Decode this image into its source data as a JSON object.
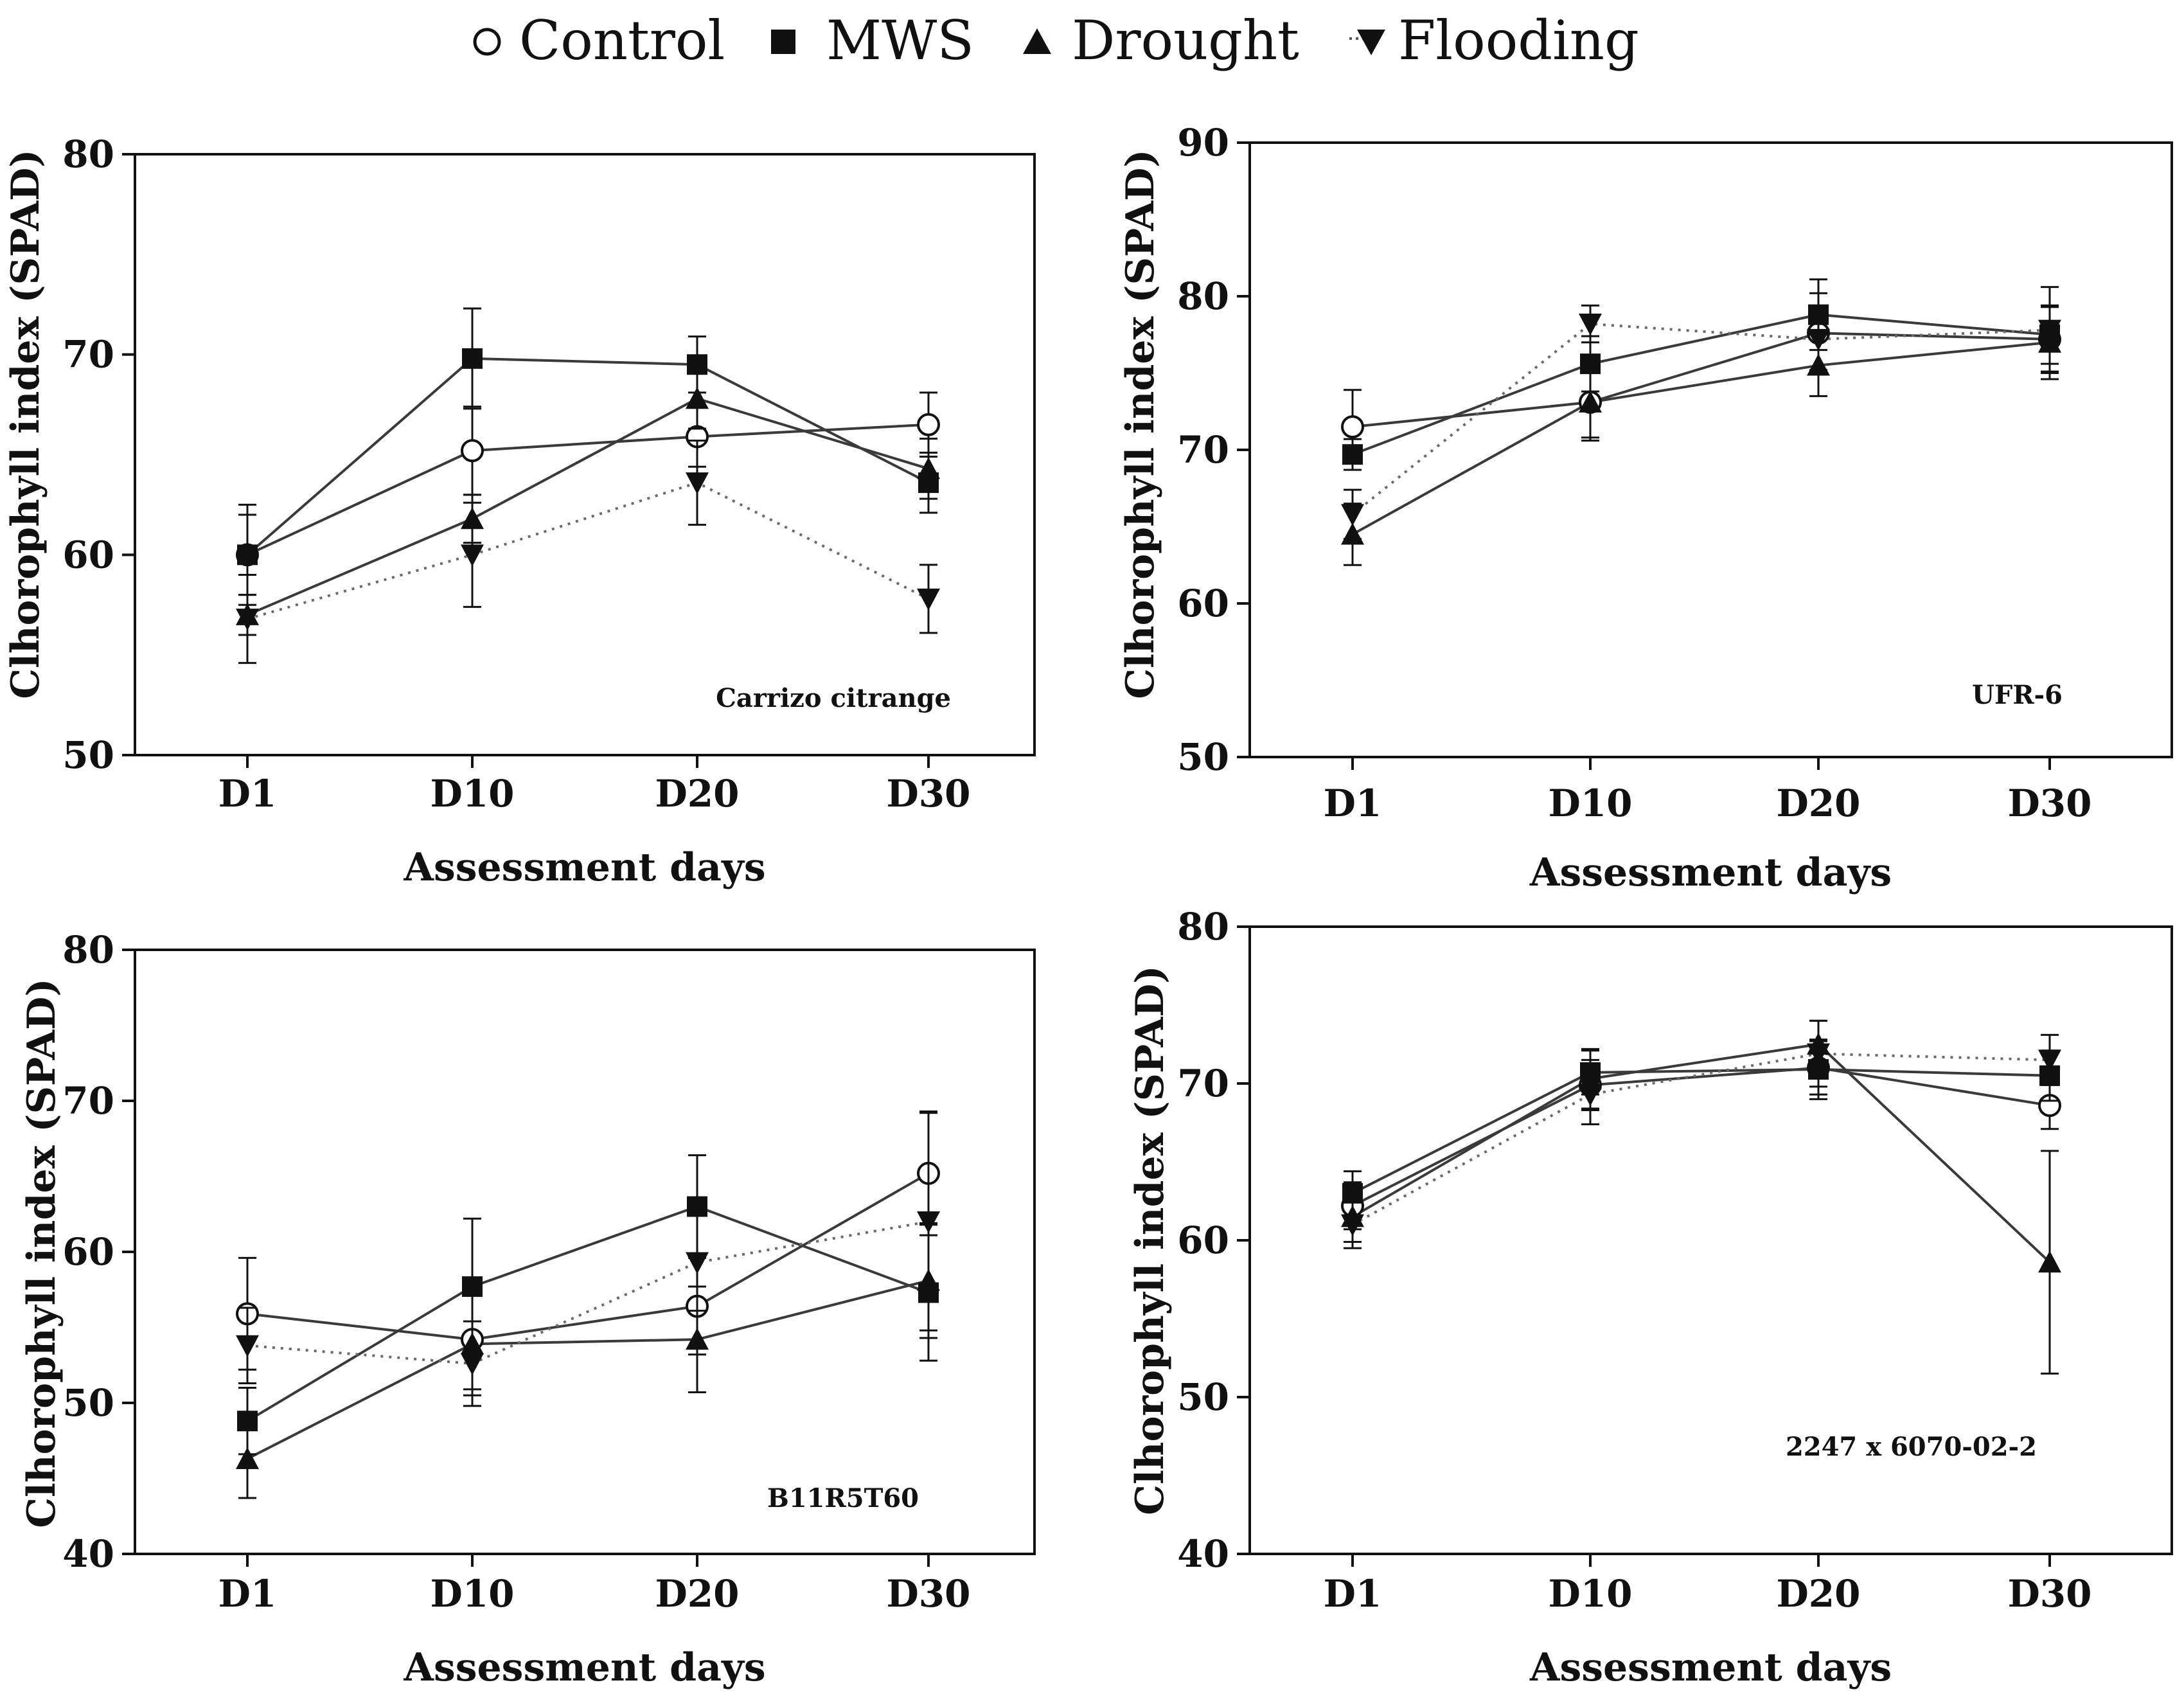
{
  "legend": [
    {
      "name": "Control",
      "marker": "circle-open-icon"
    },
    {
      "name": "MWS",
      "marker": "square-filled-icon"
    },
    {
      "name": "Drought",
      "marker": "triangle-up-filled-icon"
    },
    {
      "name": "Flooding",
      "marker": "triangle-down-filled-icon"
    }
  ],
  "colors": {
    "line": "#3a3a3a",
    "marker": "#111111",
    "open_fill": "#ffffff"
  },
  "chart_data": [
    {
      "type": "line",
      "label": "Carrizo citrange",
      "xlabel": "Assessment days",
      "ylabel": "Clhorophyll index (SPAD)",
      "categories": [
        "D1",
        "D10",
        "D20",
        "D30"
      ],
      "ylim": [
        50,
        80
      ],
      "yticks": [
        50,
        60,
        70,
        80
      ],
      "series": [
        {
          "name": "Control",
          "values": [
            60,
            65.2,
            65.9,
            66.5
          ],
          "errors": [
            2.5,
            2.2,
            1.5,
            1.6
          ]
        },
        {
          "name": "MWS",
          "values": [
            60,
            69.8,
            69.5,
            63.6
          ],
          "errors": [
            2.0,
            2.5,
            1.4,
            1.5
          ]
        },
        {
          "name": "Drought",
          "values": [
            57,
            61.8,
            67.8,
            64.3
          ],
          "errors": [
            1.0,
            1.2,
            1.5,
            1.5
          ]
        },
        {
          "name": "Flooding",
          "values": [
            56.8,
            60,
            63.6,
            57.8
          ],
          "errors": [
            2.2,
            2.6,
            2.1,
            1.7
          ]
        }
      ]
    },
    {
      "type": "line",
      "label": "UFR-6",
      "xlabel": "Assessment days",
      "ylabel": "Clhorophyll index (SPAD)",
      "categories": [
        "D1",
        "D10",
        "D20",
        "D30"
      ],
      "ylim": [
        50,
        90
      ],
      "yticks": [
        50,
        60,
        70,
        80,
        90
      ],
      "series": [
        {
          "name": "Control",
          "values": [
            71.5,
            73.1,
            77.6,
            77.2
          ],
          "errors": [
            2.4,
            2.3,
            2.6,
            2.1
          ]
        },
        {
          "name": "MWS",
          "values": [
            69.7,
            75.6,
            78.8,
            77.5
          ],
          "errors": [
            1.0,
            1.8,
            2.3,
            1.9
          ]
        },
        {
          "name": "Drought",
          "values": [
            64.5,
            73.1,
            75.5,
            77
          ],
          "errors": [
            2.0,
            2.5,
            2.0,
            2.4
          ]
        },
        {
          "name": "Flooding",
          "values": [
            65.8,
            78.2,
            77.2,
            77.8
          ],
          "errors": [
            1.6,
            1.2,
            2.0,
            2.8
          ]
        }
      ]
    },
    {
      "type": "line",
      "label": "B11R5T60",
      "xlabel": "Assessment days",
      "ylabel": "Clhorophyll index (SPAD)",
      "categories": [
        "D1",
        "D10",
        "D20",
        "D30"
      ],
      "ylim": [
        40,
        80
      ],
      "yticks": [
        40,
        50,
        60,
        70,
        80
      ],
      "series": [
        {
          "name": "Control",
          "values": [
            55.9,
            54.2,
            56.4,
            65.2
          ],
          "errors": [
            3.7,
            3.3,
            3.2,
            4.1
          ]
        },
        {
          "name": "MWS",
          "values": [
            48.8,
            57.7,
            63,
            57.3
          ],
          "errors": [
            2.2,
            4.5,
            3.4,
            4.5
          ]
        },
        {
          "name": "Drought",
          "values": [
            46.3,
            53.9,
            54.2,
            58.1
          ],
          "errors": [
            2.6,
            3.4,
            3.5,
            3.8
          ]
        },
        {
          "name": "Flooding",
          "values": [
            53.8,
            52.6,
            59.3,
            62
          ],
          "errors": [
            2.5,
            2.8,
            3.2,
            7.2
          ]
        }
      ]
    },
    {
      "type": "line",
      "label": "2247 x 6070-02-2",
      "xlabel": "Assessment days",
      "ylabel": "Clhorophyll index (SPAD)",
      "categories": [
        "D1",
        "D10",
        "D20",
        "D30"
      ],
      "ylim": [
        40,
        80
      ],
      "yticks": [
        40,
        50,
        60,
        70,
        80
      ],
      "series": [
        {
          "name": "Control",
          "values": [
            62.2,
            69.9,
            71,
            68.6
          ],
          "errors": [
            1.5,
            1.6,
            1.7,
            1.5
          ]
        },
        {
          "name": "MWS",
          "values": [
            63,
            70.7,
            70.9,
            70.5
          ],
          "errors": [
            1.4,
            1.4,
            1.9,
            1.6
          ]
        },
        {
          "name": "Drought",
          "values": [
            61.5,
            70.3,
            72.5,
            58.6
          ],
          "errors": [
            1.6,
            1.9,
            1.5,
            7.1
          ]
        },
        {
          "name": "Flooding",
          "values": [
            61,
            69.3,
            71.9,
            71.5
          ],
          "errors": [
            1.5,
            1.9,
            2.1,
            1.6
          ]
        }
      ]
    }
  ]
}
